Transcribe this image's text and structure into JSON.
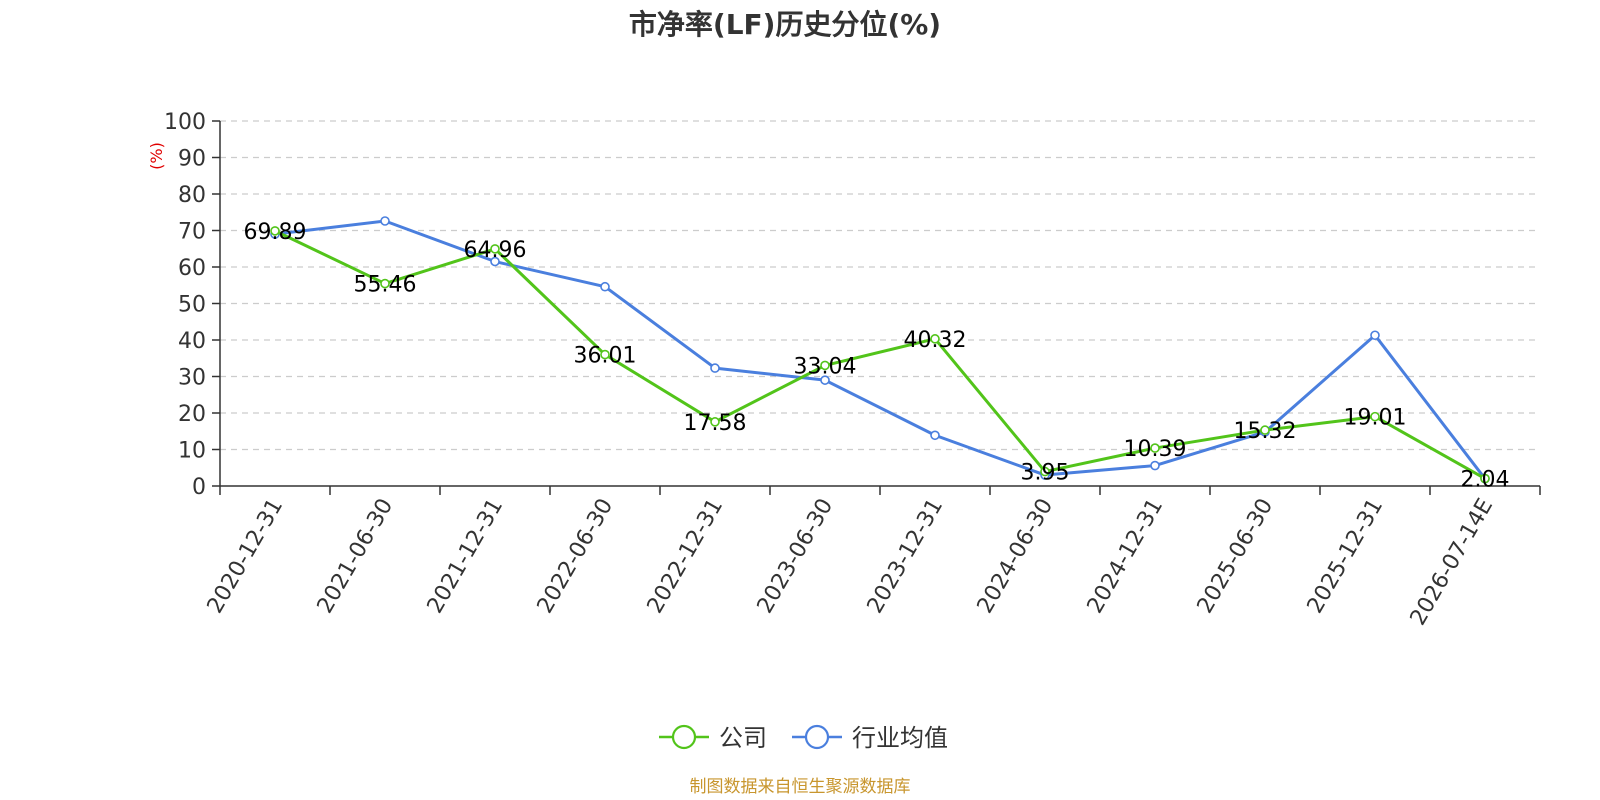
{
  "chart_data": {
    "type": "line",
    "title": "市净率(LF)历史分位(%)",
    "ylabel": "(%)",
    "ylim": [
      0,
      100
    ],
    "yticks": [
      0,
      10,
      20,
      30,
      40,
      50,
      60,
      70,
      80,
      90,
      100
    ],
    "grid": true,
    "legend_position": "bottom",
    "categories": [
      "2020-12-31",
      "2021-06-30",
      "2021-12-31",
      "2022-06-30",
      "2022-12-31",
      "2023-06-30",
      "2023-12-31",
      "2024-06-30",
      "2024-12-31",
      "2025-06-30",
      "2025-12-31",
      "2026-07-14E"
    ],
    "series": [
      {
        "name": "公司",
        "color": "#52c41a",
        "show_labels": true,
        "values": [
          69.89,
          55.46,
          64.96,
          36.01,
          17.58,
          33.04,
          40.32,
          3.95,
          10.39,
          15.32,
          19.01,
          2.04
        ],
        "labels": [
          "69.89",
          "55.46",
          "64.96",
          "36.01",
          "17.58",
          "33.04",
          "40.32",
          "3.95",
          "10.39",
          "15.32",
          "19.01",
          "2.04"
        ]
      },
      {
        "name": "行业均值",
        "color": "#4a7fde",
        "show_labels": false,
        "values": [
          69.0,
          72.6,
          61.5,
          54.6,
          32.3,
          29.0,
          13.9,
          3.0,
          5.6,
          14.8,
          41.3,
          2.0
        ]
      }
    ],
    "source": "制图数据来自恒生聚源数据库",
    "source_color": "#c8962e",
    "ylabel_color": "#e00000"
  }
}
